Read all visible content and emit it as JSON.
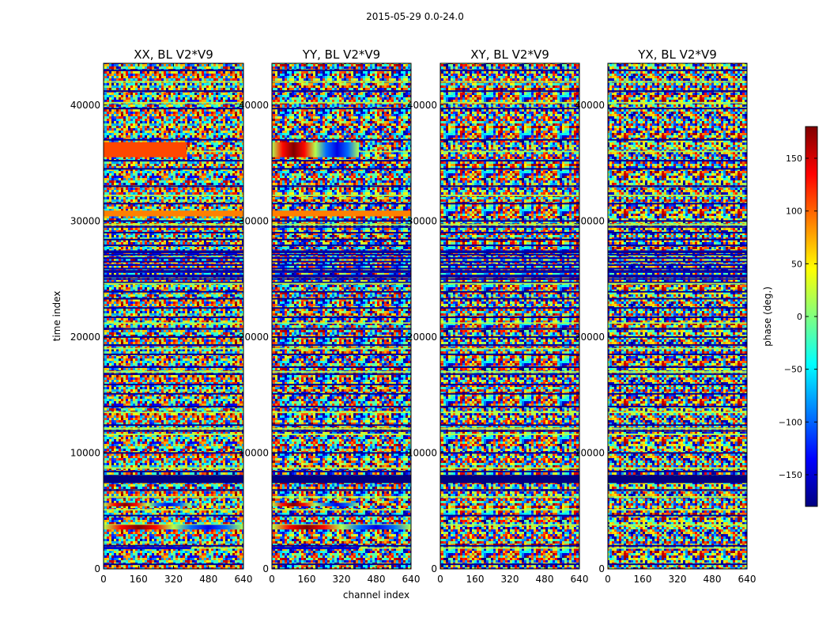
{
  "figure_title": "2015-05-29 0.0-24.0",
  "colors": {
    "colormap": "jet",
    "stops": [
      "#00007f",
      "#0000ff",
      "#007fff",
      "#00ffff",
      "#7fff7f",
      "#ffff00",
      "#ff7f00",
      "#ff0000",
      "#7f0000"
    ]
  },
  "chart_data": [
    {
      "type": "heatmap",
      "title": "XX, BL V2*V9",
      "xlabel": "",
      "ylabel": "time index",
      "xlim": [
        0,
        640
      ],
      "ylim": [
        0,
        43600
      ],
      "xticks": [
        "0",
        "160",
        "320",
        "480",
        "640"
      ],
      "yticks": [
        "0",
        "10000",
        "20000",
        "30000",
        "40000"
      ],
      "value_range": [
        -180,
        180
      ],
      "value_label": "phase (deg.)",
      "description_of_values": "mostly random phase noise in [-180, 180] deg; coherent horizontal bands",
      "bands": [
        {
          "y_range": [
            35500,
            36800
          ],
          "x_range": [
            0,
            380
          ],
          "phase_deg": 110
        },
        {
          "y_range": [
            30400,
            30900
          ],
          "x_range": [
            0,
            640
          ],
          "phase_deg": 90
        },
        {
          "y_range": [
            7400,
            8100
          ],
          "x_range": [
            0,
            640
          ],
          "phase_deg": -180
        },
        {
          "y_range": [
            5400,
            5700
          ],
          "x_range": [
            0,
            400
          ],
          "phase_deg": "gradient"
        },
        {
          "y_range": [
            3400,
            3800
          ],
          "x_range": [
            0,
            640
          ],
          "phase_deg": "gradient"
        },
        {
          "y_range": [
            1700,
            1900
          ],
          "x_range": [
            0,
            400
          ],
          "phase_deg": -150
        }
      ]
    },
    {
      "type": "heatmap",
      "title": "YY, BL V2*V9",
      "xlabel": "channel index",
      "ylabel": "",
      "xlim": [
        0,
        640
      ],
      "ylim": [
        0,
        43600
      ],
      "xticks": [
        "0",
        "160",
        "320",
        "480",
        "640"
      ],
      "yticks": [
        "0",
        "10000",
        "20000",
        "30000",
        "40000"
      ],
      "value_range": [
        -180,
        180
      ],
      "value_label": "phase (deg.)",
      "bands": [
        {
          "y_range": [
            35500,
            36800
          ],
          "x_range": [
            0,
            400
          ],
          "phase_deg": "gradient"
        },
        {
          "y_range": [
            30400,
            30900
          ],
          "x_range": [
            0,
            640
          ],
          "phase_deg": 90
        },
        {
          "y_range": [
            7400,
            8100
          ],
          "x_range": [
            0,
            640
          ],
          "phase_deg": -180
        },
        {
          "y_range": [
            5400,
            5700
          ],
          "x_range": [
            0,
            400
          ],
          "phase_deg": "gradient"
        },
        {
          "y_range": [
            3400,
            3800
          ],
          "x_range": [
            0,
            640
          ],
          "phase_deg": "gradient"
        },
        {
          "y_range": [
            1700,
            1900
          ],
          "x_range": [
            0,
            400
          ],
          "phase_deg": -150
        }
      ]
    },
    {
      "type": "heatmap",
      "title": "XY, BL V2*V9",
      "xlabel": "",
      "ylabel": "",
      "xlim": [
        0,
        640
      ],
      "ylim": [
        0,
        43600
      ],
      "xticks": [
        "0",
        "160",
        "320",
        "480",
        "640"
      ],
      "yticks": [
        "0",
        "10000",
        "20000",
        "30000",
        "40000"
      ],
      "value_range": [
        -180,
        180
      ],
      "value_label": "phase (deg.)",
      "bands": [
        {
          "y_range": [
            7400,
            8100
          ],
          "x_range": [
            0,
            640
          ],
          "phase_deg": -180
        }
      ]
    },
    {
      "type": "heatmap",
      "title": "YX, BL V2*V9",
      "xlabel": "",
      "ylabel": "",
      "xlim": [
        0,
        640
      ],
      "ylim": [
        0,
        43600
      ],
      "xticks": [
        "0",
        "160",
        "320",
        "480",
        "640"
      ],
      "yticks": [
        "0",
        "10000",
        "20000",
        "30000",
        "40000"
      ],
      "value_range": [
        -180,
        180
      ],
      "value_label": "phase (deg.)",
      "bands": [
        {
          "y_range": [
            7400,
            8100
          ],
          "x_range": [
            0,
            640
          ],
          "phase_deg": -180
        }
      ]
    }
  ],
  "colorbar": {
    "label": "phase (deg.)",
    "range": [
      -180,
      180
    ],
    "ticks": [
      "150",
      "100",
      "50",
      "0",
      "−50",
      "−100",
      "−150"
    ],
    "tick_values": [
      150,
      100,
      50,
      0,
      -50,
      -100,
      -150
    ]
  },
  "common_dark_band_times": [
    43000,
    41200,
    39700,
    37000,
    35200,
    34500,
    33000,
    31500,
    30000,
    29500,
    29000,
    28400,
    27900,
    27300,
    26800,
    26200,
    25700,
    25200,
    24700,
    23900,
    23300,
    22500,
    21700,
    20700,
    20000,
    19300,
    18500,
    17400,
    16800,
    15900,
    15100,
    14000,
    12400,
    11900,
    10000,
    8400,
    7700,
    6800,
    4600,
    2000,
    400
  ],
  "common_green_band_times": [
    42000,
    40200,
    36000,
    32200,
    29700,
    24600,
    21200,
    19000,
    17000,
    13500,
    12100,
    11600,
    8700,
    6200,
    5100,
    3800,
    1800
  ]
}
